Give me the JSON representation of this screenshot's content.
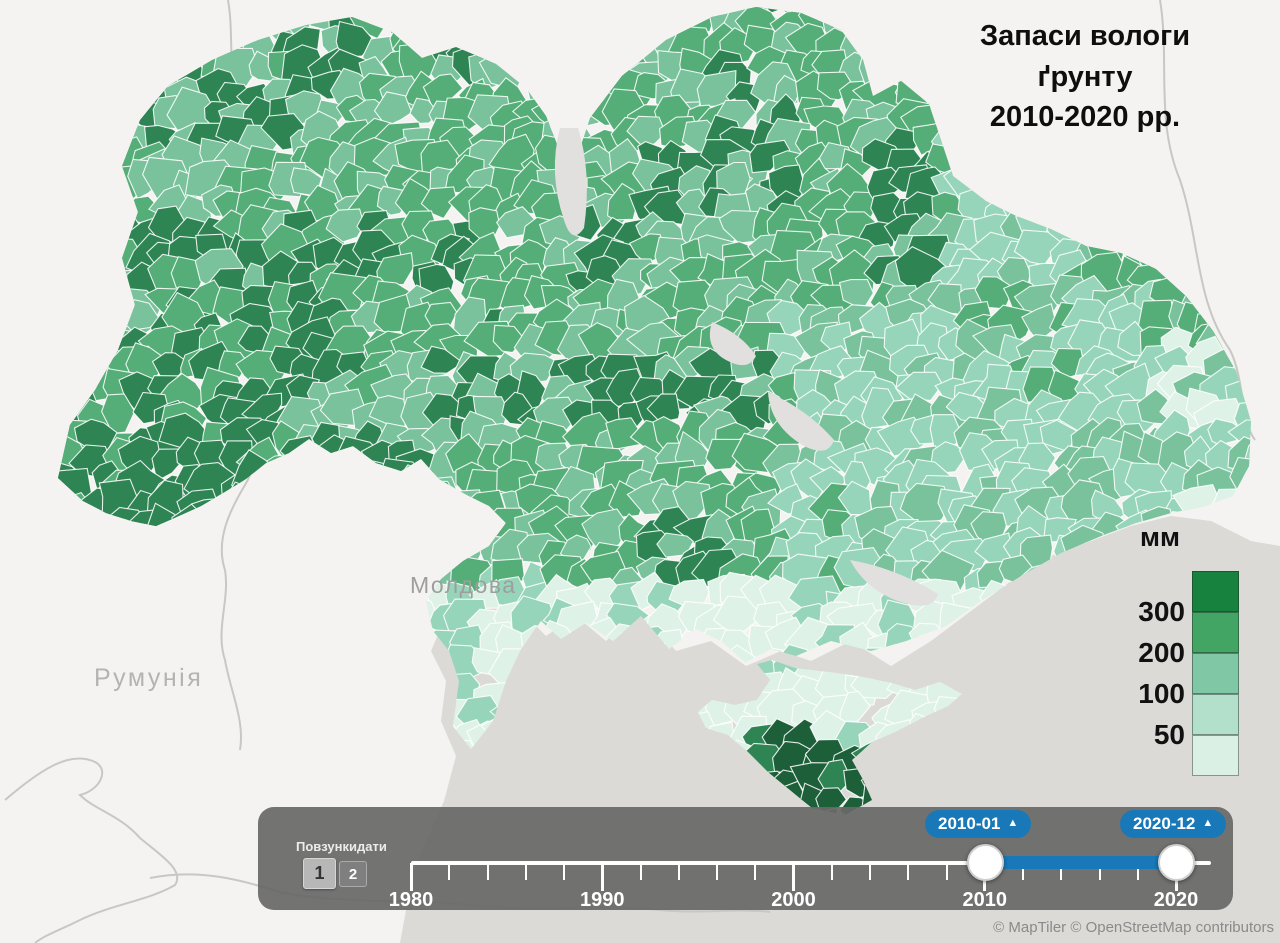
{
  "title": {
    "line1": "Запаси вологи ґрунту",
    "line2": "2010-2020 рр."
  },
  "map_labels": {
    "moldova": "Молдова",
    "romania": "Румунія"
  },
  "legend": {
    "unit": "мм",
    "tick_labels": [
      "300",
      "200",
      "100",
      "50"
    ],
    "colors": [
      "#17813e",
      "#42a563",
      "#7fc7a5",
      "#b2e0ca",
      "#daf0e5"
    ]
  },
  "timeline": {
    "panel_label": "Повзункидати",
    "layer_buttons": [
      "1",
      "2"
    ],
    "year_labels": [
      "1980",
      "1990",
      "2000",
      "2010",
      "2020"
    ],
    "start_badge": "2010-01",
    "end_badge": "2020-12",
    "badge_arrow": "▲",
    "accent_color": "#1878b8"
  },
  "attribution": "© MapTiler © OpenStreetMap contributors"
}
